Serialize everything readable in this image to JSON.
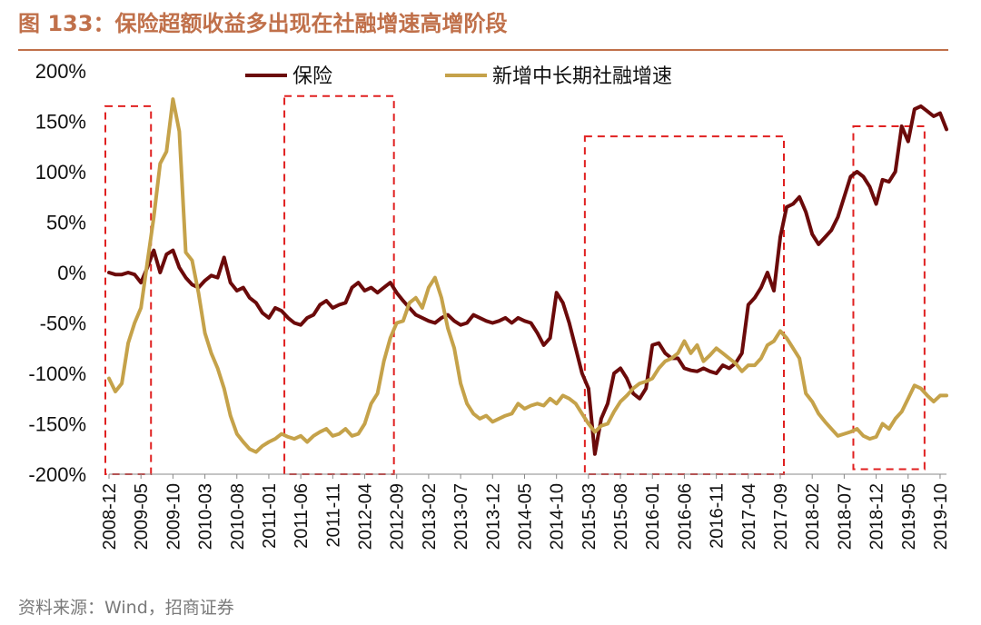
{
  "header": {
    "title": "图 133：保险超额收益多出现在社融增速高增阶段"
  },
  "footer": {
    "source": "资料来源：Wind，招商证券"
  },
  "chart_data": {
    "type": "line",
    "title": "",
    "xlabel": "",
    "ylabel": "",
    "ylim": [
      -2.0,
      2.0
    ],
    "y_tick_values": [
      -2.0,
      -1.5,
      -1.0,
      -0.5,
      0,
      0.5,
      1.0,
      1.5,
      2.0
    ],
    "y_tick_labels": [
      "-200%",
      "-150%",
      "-100%",
      "-50%",
      "0%",
      "50%",
      "100%",
      "150%",
      "200%"
    ],
    "x_tick_labels": [
      "2008-12",
      "2009-05",
      "2009-10",
      "2010-03",
      "2010-08",
      "2011-01",
      "2011-06",
      "2011-11",
      "2012-04",
      "2012-09",
      "2013-02",
      "2013-07",
      "2013-12",
      "2014-05",
      "2014-10",
      "2015-03",
      "2015-08",
      "2016-01",
      "2016-06",
      "2016-11",
      "2017-04",
      "2017-09",
      "2018-02",
      "2018-07",
      "2018-12",
      "2019-05",
      "2019-10"
    ],
    "x_start": "2008-12",
    "x_end": "2019-11",
    "legend_position": "top",
    "grid": false,
    "highlight_periods": [
      {
        "from": "2008-12",
        "to": "2009-06",
        "ymin": -2.0,
        "ymax": 1.65
      },
      {
        "from": "2011-04",
        "to": "2012-08",
        "ymin": -2.0,
        "ymax": 1.75
      },
      {
        "from": "2015-03",
        "to": "2017-09",
        "ymin": -2.0,
        "ymax": 1.35
      },
      {
        "from": "2018-09",
        "to": "2019-07",
        "ymin": -1.95,
        "ymax": 1.45
      }
    ],
    "series": [
      {
        "name": "保险",
        "color": "#6b0a0a",
        "points": [
          [
            "2008-12",
            0.0
          ],
          [
            "2009-01",
            -0.02
          ],
          [
            "2009-02",
            -0.02
          ],
          [
            "2009-03",
            0.0
          ],
          [
            "2009-04",
            -0.02
          ],
          [
            "2009-05",
            -0.1
          ],
          [
            "2009-06",
            0.05
          ],
          [
            "2009-07",
            0.22
          ],
          [
            "2009-08",
            0.0
          ],
          [
            "2009-09",
            0.18
          ],
          [
            "2009-10",
            0.22
          ],
          [
            "2009-11",
            0.05
          ],
          [
            "2009-12",
            -0.05
          ],
          [
            "2010-01",
            -0.12
          ],
          [
            "2010-02",
            -0.15
          ],
          [
            "2010-03",
            -0.08
          ],
          [
            "2010-04",
            -0.03
          ],
          [
            "2010-05",
            -0.05
          ],
          [
            "2010-06",
            0.15
          ],
          [
            "2010-07",
            -0.1
          ],
          [
            "2010-08",
            -0.18
          ],
          [
            "2010-09",
            -0.15
          ],
          [
            "2010-10",
            -0.25
          ],
          [
            "2010-11",
            -0.3
          ],
          [
            "2010-12",
            -0.4
          ],
          [
            "2011-01",
            -0.45
          ],
          [
            "2011-02",
            -0.35
          ],
          [
            "2011-03",
            -0.38
          ],
          [
            "2011-04",
            -0.45
          ],
          [
            "2011-05",
            -0.5
          ],
          [
            "2011-06",
            -0.52
          ],
          [
            "2011-07",
            -0.45
          ],
          [
            "2011-08",
            -0.42
          ],
          [
            "2011-09",
            -0.32
          ],
          [
            "2011-10",
            -0.28
          ],
          [
            "2011-11",
            -0.35
          ],
          [
            "2011-12",
            -0.32
          ],
          [
            "2012-01",
            -0.3
          ],
          [
            "2012-02",
            -0.15
          ],
          [
            "2012-03",
            -0.1
          ],
          [
            "2012-04",
            -0.18
          ],
          [
            "2012-05",
            -0.15
          ],
          [
            "2012-06",
            -0.2
          ],
          [
            "2012-07",
            -0.15
          ],
          [
            "2012-08",
            -0.1
          ],
          [
            "2012-09",
            -0.2
          ],
          [
            "2012-10",
            -0.28
          ],
          [
            "2012-11",
            -0.35
          ],
          [
            "2012-12",
            -0.42
          ],
          [
            "2013-01",
            -0.45
          ],
          [
            "2013-02",
            -0.48
          ],
          [
            "2013-03",
            -0.5
          ],
          [
            "2013-04",
            -0.45
          ],
          [
            "2013-05",
            -0.42
          ],
          [
            "2013-06",
            -0.48
          ],
          [
            "2013-07",
            -0.52
          ],
          [
            "2013-08",
            -0.5
          ],
          [
            "2013-09",
            -0.42
          ],
          [
            "2013-10",
            -0.45
          ],
          [
            "2013-11",
            -0.48
          ],
          [
            "2013-12",
            -0.5
          ],
          [
            "2014-01",
            -0.48
          ],
          [
            "2014-02",
            -0.45
          ],
          [
            "2014-03",
            -0.5
          ],
          [
            "2014-04",
            -0.45
          ],
          [
            "2014-05",
            -0.48
          ],
          [
            "2014-06",
            -0.5
          ],
          [
            "2014-07",
            -0.6
          ],
          [
            "2014-08",
            -0.72
          ],
          [
            "2014-09",
            -0.65
          ],
          [
            "2014-10",
            -0.2
          ],
          [
            "2014-11",
            -0.3
          ],
          [
            "2014-12",
            -0.5
          ],
          [
            "2015-01",
            -0.75
          ],
          [
            "2015-02",
            -1.0
          ],
          [
            "2015-03",
            -1.15
          ],
          [
            "2015-04",
            -1.8
          ],
          [
            "2015-05",
            -1.45
          ],
          [
            "2015-06",
            -1.3
          ],
          [
            "2015-07",
            -1.0
          ],
          [
            "2015-08",
            -0.95
          ],
          [
            "2015-09",
            -1.05
          ],
          [
            "2015-10",
            -1.2
          ],
          [
            "2015-11",
            -1.25
          ],
          [
            "2015-12",
            -1.15
          ],
          [
            "2016-01",
            -0.72
          ],
          [
            "2016-02",
            -0.7
          ],
          [
            "2016-03",
            -0.8
          ],
          [
            "2016-04",
            -0.85
          ],
          [
            "2016-05",
            -0.85
          ],
          [
            "2016-06",
            -0.95
          ],
          [
            "2016-07",
            -0.97
          ],
          [
            "2016-08",
            -0.98
          ],
          [
            "2016-09",
            -0.95
          ],
          [
            "2016-10",
            -0.98
          ],
          [
            "2016-11",
            -1.0
          ],
          [
            "2016-12",
            -0.92
          ],
          [
            "2017-01",
            -0.95
          ],
          [
            "2017-02",
            -0.9
          ],
          [
            "2017-03",
            -0.8
          ],
          [
            "2017-04",
            -0.32
          ],
          [
            "2017-05",
            -0.25
          ],
          [
            "2017-06",
            -0.15
          ],
          [
            "2017-07",
            0.0
          ],
          [
            "2017-08",
            -0.18
          ],
          [
            "2017-09",
            0.35
          ],
          [
            "2017-10",
            0.65
          ],
          [
            "2017-11",
            0.68
          ],
          [
            "2017-12",
            0.75
          ],
          [
            "2018-01",
            0.6
          ],
          [
            "2018-02",
            0.38
          ],
          [
            "2018-03",
            0.28
          ],
          [
            "2018-04",
            0.35
          ],
          [
            "2018-05",
            0.42
          ],
          [
            "2018-06",
            0.55
          ],
          [
            "2018-07",
            0.75
          ],
          [
            "2018-08",
            0.95
          ],
          [
            "2018-09",
            1.0
          ],
          [
            "2018-10",
            0.95
          ],
          [
            "2018-11",
            0.85
          ],
          [
            "2018-12",
            0.68
          ],
          [
            "2019-01",
            0.92
          ],
          [
            "2019-02",
            0.9
          ],
          [
            "2019-03",
            1.0
          ],
          [
            "2019-04",
            1.45
          ],
          [
            "2019-05",
            1.3
          ],
          [
            "2019-06",
            1.62
          ],
          [
            "2019-07",
            1.65
          ],
          [
            "2019-08",
            1.6
          ],
          [
            "2019-09",
            1.55
          ],
          [
            "2019-10",
            1.58
          ],
          [
            "2019-11",
            1.42
          ]
        ]
      },
      {
        "name": "新增中长期社融增速",
        "color": "#c5a24a",
        "points": [
          [
            "2008-12",
            -1.05
          ],
          [
            "2009-01",
            -1.18
          ],
          [
            "2009-02",
            -1.1
          ],
          [
            "2009-03",
            -0.7
          ],
          [
            "2009-04",
            -0.5
          ],
          [
            "2009-05",
            -0.35
          ],
          [
            "2009-06",
            0.1
          ],
          [
            "2009-07",
            0.55
          ],
          [
            "2009-08",
            1.08
          ],
          [
            "2009-09",
            1.2
          ],
          [
            "2009-10",
            1.72
          ],
          [
            "2009-11",
            1.4
          ],
          [
            "2009-12",
            0.2
          ],
          [
            "2010-01",
            0.12
          ],
          [
            "2010-02",
            -0.2
          ],
          [
            "2010-03",
            -0.6
          ],
          [
            "2010-04",
            -0.8
          ],
          [
            "2010-05",
            -0.95
          ],
          [
            "2010-06",
            -1.15
          ],
          [
            "2010-07",
            -1.42
          ],
          [
            "2010-08",
            -1.6
          ],
          [
            "2010-09",
            -1.68
          ],
          [
            "2010-10",
            -1.75
          ],
          [
            "2010-11",
            -1.78
          ],
          [
            "2010-12",
            -1.72
          ],
          [
            "2011-01",
            -1.68
          ],
          [
            "2011-02",
            -1.65
          ],
          [
            "2011-03",
            -1.6
          ],
          [
            "2011-04",
            -1.63
          ],
          [
            "2011-05",
            -1.65
          ],
          [
            "2011-06",
            -1.62
          ],
          [
            "2011-07",
            -1.68
          ],
          [
            "2011-08",
            -1.62
          ],
          [
            "2011-09",
            -1.58
          ],
          [
            "2011-10",
            -1.55
          ],
          [
            "2011-11",
            -1.62
          ],
          [
            "2011-12",
            -1.6
          ],
          [
            "2012-01",
            -1.55
          ],
          [
            "2012-02",
            -1.62
          ],
          [
            "2012-03",
            -1.6
          ],
          [
            "2012-04",
            -1.5
          ],
          [
            "2012-05",
            -1.3
          ],
          [
            "2012-06",
            -1.2
          ],
          [
            "2012-07",
            -0.88
          ],
          [
            "2012-08",
            -0.65
          ],
          [
            "2012-09",
            -0.5
          ],
          [
            "2012-10",
            -0.48
          ],
          [
            "2012-11",
            -0.3
          ],
          [
            "2012-12",
            -0.25
          ],
          [
            "2013-01",
            -0.35
          ],
          [
            "2013-02",
            -0.15
          ],
          [
            "2013-03",
            -0.05
          ],
          [
            "2013-04",
            -0.25
          ],
          [
            "2013-05",
            -0.55
          ],
          [
            "2013-06",
            -0.75
          ],
          [
            "2013-07",
            -1.1
          ],
          [
            "2013-08",
            -1.3
          ],
          [
            "2013-09",
            -1.4
          ],
          [
            "2013-10",
            -1.45
          ],
          [
            "2013-11",
            -1.42
          ],
          [
            "2013-12",
            -1.48
          ],
          [
            "2014-01",
            -1.45
          ],
          [
            "2014-02",
            -1.42
          ],
          [
            "2014-03",
            -1.4
          ],
          [
            "2014-04",
            -1.3
          ],
          [
            "2014-05",
            -1.35
          ],
          [
            "2014-06",
            -1.32
          ],
          [
            "2014-07",
            -1.3
          ],
          [
            "2014-08",
            -1.32
          ],
          [
            "2014-09",
            -1.25
          ],
          [
            "2014-10",
            -1.3
          ],
          [
            "2014-11",
            -1.22
          ],
          [
            "2014-12",
            -1.25
          ],
          [
            "2015-01",
            -1.3
          ],
          [
            "2015-02",
            -1.4
          ],
          [
            "2015-03",
            -1.5
          ],
          [
            "2015-04",
            -1.58
          ],
          [
            "2015-05",
            -1.52
          ],
          [
            "2015-06",
            -1.5
          ],
          [
            "2015-07",
            -1.38
          ],
          [
            "2015-08",
            -1.28
          ],
          [
            "2015-09",
            -1.22
          ],
          [
            "2015-10",
            -1.15
          ],
          [
            "2015-11",
            -1.1
          ],
          [
            "2015-12",
            -1.08
          ],
          [
            "2016-01",
            -1.05
          ],
          [
            "2016-02",
            -0.95
          ],
          [
            "2016-03",
            -0.88
          ],
          [
            "2016-04",
            -0.85
          ],
          [
            "2016-05",
            -0.8
          ],
          [
            "2016-06",
            -0.68
          ],
          [
            "2016-07",
            -0.8
          ],
          [
            "2016-08",
            -0.72
          ],
          [
            "2016-09",
            -0.88
          ],
          [
            "2016-10",
            -0.82
          ],
          [
            "2016-11",
            -0.75
          ],
          [
            "2016-12",
            -0.8
          ],
          [
            "2017-01",
            -0.85
          ],
          [
            "2017-02",
            -0.9
          ],
          [
            "2017-03",
            -0.98
          ],
          [
            "2017-04",
            -0.92
          ],
          [
            "2017-05",
            -0.92
          ],
          [
            "2017-06",
            -0.85
          ],
          [
            "2017-07",
            -0.72
          ],
          [
            "2017-08",
            -0.68
          ],
          [
            "2017-09",
            -0.58
          ],
          [
            "2017-10",
            -0.65
          ],
          [
            "2017-11",
            -0.75
          ],
          [
            "2017-12",
            -0.85
          ],
          [
            "2018-01",
            -1.2
          ],
          [
            "2018-02",
            -1.28
          ],
          [
            "2018-03",
            -1.4
          ],
          [
            "2018-04",
            -1.48
          ],
          [
            "2018-05",
            -1.55
          ],
          [
            "2018-06",
            -1.62
          ],
          [
            "2018-07",
            -1.6
          ],
          [
            "2018-08",
            -1.58
          ],
          [
            "2018-09",
            -1.55
          ],
          [
            "2018-10",
            -1.62
          ],
          [
            "2018-11",
            -1.65
          ],
          [
            "2018-12",
            -1.63
          ],
          [
            "2019-01",
            -1.5
          ],
          [
            "2019-02",
            -1.55
          ],
          [
            "2019-03",
            -1.45
          ],
          [
            "2019-04",
            -1.38
          ],
          [
            "2019-05",
            -1.25
          ],
          [
            "2019-06",
            -1.12
          ],
          [
            "2019-07",
            -1.15
          ],
          [
            "2019-08",
            -1.22
          ],
          [
            "2019-09",
            -1.28
          ],
          [
            "2019-10",
            -1.22
          ],
          [
            "2019-11",
            -1.22
          ]
        ]
      }
    ]
  }
}
